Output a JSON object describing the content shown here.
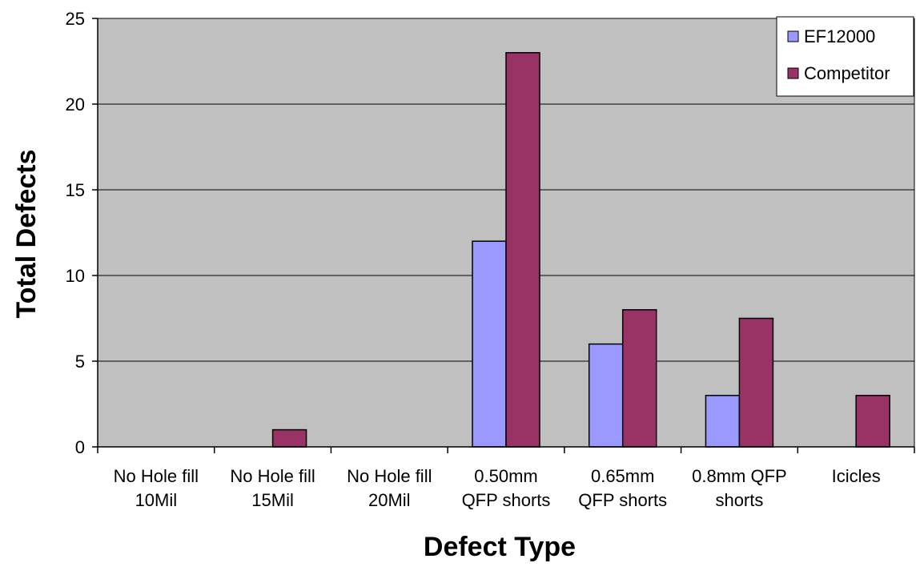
{
  "chart_data": {
    "type": "bar",
    "title": "",
    "xlabel": "Defect Type",
    "ylabel": "Total Defects",
    "ylim": [
      0,
      25
    ],
    "yticks": [
      0,
      5,
      10,
      15,
      20,
      25
    ],
    "grid": true,
    "legend_position": "top-right",
    "categories": [
      [
        "No Hole fill",
        "10Mil"
      ],
      [
        "No Hole fill",
        "15Mil"
      ],
      [
        "No Hole fill",
        "20Mil"
      ],
      [
        "0.50mm",
        "QFP shorts"
      ],
      [
        "0.65mm",
        "QFP shorts"
      ],
      [
        "0.8mm QFP",
        "shorts"
      ],
      [
        "Icicles"
      ]
    ],
    "series": [
      {
        "name": "EF12000",
        "color": "#9999FF",
        "values": [
          0,
          0,
          0,
          12,
          6,
          3,
          0
        ]
      },
      {
        "name": "Competitor",
        "color": "#993366",
        "values": [
          0,
          1,
          0,
          23,
          8,
          7.5,
          3
        ]
      }
    ],
    "plot_background": "#C0C0C0"
  }
}
